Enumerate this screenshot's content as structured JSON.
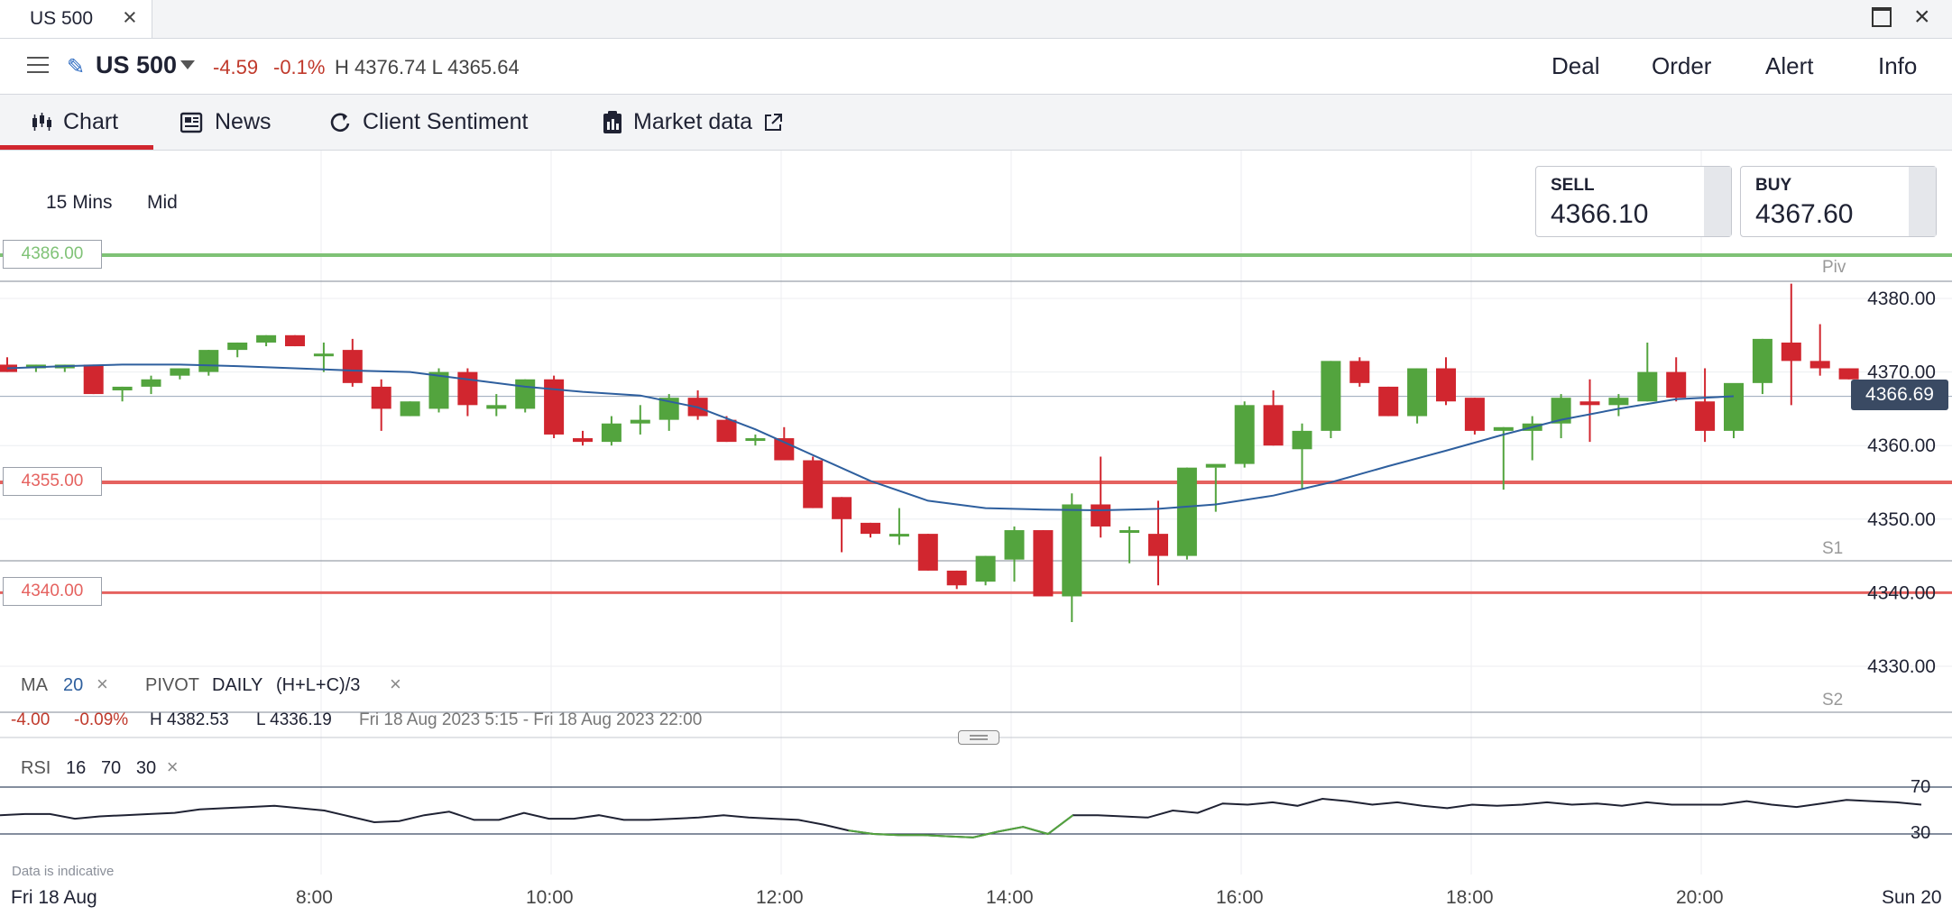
{
  "window": {
    "tab_title": "US 500"
  },
  "header": {
    "market": "US 500",
    "change": "-4.59",
    "change_pct": "-0.1%",
    "hilo": "H 4376.74  L 4365.64",
    "actions": [
      "Deal",
      "Order",
      "Alert",
      "Info"
    ]
  },
  "subtabs": [
    {
      "label": "Chart",
      "icon": "candlestick-icon",
      "active": true
    },
    {
      "label": "News",
      "icon": "newspaper-icon"
    },
    {
      "label": "Client Sentiment",
      "icon": "refresh-icon"
    },
    {
      "label": "Market data",
      "icon": "clipboard-icon",
      "external": true
    }
  ],
  "chart": {
    "timeframe": "15 Mins",
    "price_type": "Mid",
    "sell": {
      "label": "SELL",
      "value": "4366.10"
    },
    "buy": {
      "label": "BUY",
      "value": "4367.60"
    },
    "current_price": "4366.69",
    "level_labels": {
      "piv": "Piv",
      "s1": "S1",
      "s2": "S2",
      "pivot_box": "4386.00",
      "r_box": "4355.00",
      "s_box": "4340.00"
    },
    "indicators": {
      "ma_label": "MA",
      "ma_period": "20",
      "pivot_label": "PIVOT",
      "pivot_freq": "DAILY",
      "pivot_formula": "(H+L+C)/3"
    },
    "stats": {
      "change": "-4.00",
      "change_pct": "-0.09%",
      "high": "H 4382.53",
      "low": "L 4336.19",
      "range": "Fri 18 Aug 2023 5:15 - Fri 18 Aug 2023 22:00"
    },
    "rsi": {
      "label": "RSI",
      "period": "16",
      "upper": "70",
      "lower": "30"
    },
    "disclaimer": "Data is indicative",
    "date_start": "Fri 18 Aug",
    "date_end": "Sun 20",
    "colors": {
      "up": "#53a43e",
      "down": "#d1262f",
      "ma": "#2e5f9e",
      "pivot": "#7fc276",
      "support": "#e5625f"
    }
  },
  "chart_data": {
    "type": "candlestick",
    "x_ticks": [
      "8:00",
      "10:00",
      "12:00",
      "14:00",
      "16:00",
      "18:00",
      "20:00"
    ],
    "y_ticks": [
      "4380.00",
      "4370.00",
      "4360.00",
      "4350.00",
      "4340.00",
      "4330.00"
    ],
    "ylim": [
      4326,
      4386
    ],
    "levels": [
      {
        "name": "Pivot",
        "value": 4386.0
      },
      {
        "name": "R",
        "value": 4355.0
      },
      {
        "name": "S",
        "value": 4340.0
      }
    ],
    "candles": [
      [
        4371,
        4372,
        4370,
        4370
      ],
      [
        4370.5,
        4371,
        4370,
        4371
      ],
      [
        4370.5,
        4371,
        4370,
        4371
      ],
      [
        4371,
        4371,
        4367,
        4367
      ],
      [
        4367.5,
        4368,
        4366,
        4368
      ],
      [
        4368,
        4369.5,
        4367,
        4369
      ],
      [
        4369.5,
        4370.5,
        4369,
        4370.5
      ],
      [
        4370,
        4373,
        4369.5,
        4373
      ],
      [
        4373,
        4374,
        4372,
        4374
      ],
      [
        4374,
        4375,
        4373.5,
        4375
      ],
      [
        4375,
        4375,
        4373.5,
        4373.5
      ],
      [
        4372.5,
        4374,
        4370,
        4372.5
      ],
      [
        4373,
        4374.5,
        4368,
        4368.5
      ],
      [
        4368,
        4369,
        4362,
        4365
      ],
      [
        4364,
        4366,
        4364,
        4366
      ],
      [
        4365,
        4370.5,
        4364.5,
        4370
      ],
      [
        4370,
        4370.5,
        4364,
        4365.5
      ],
      [
        4365,
        4367,
        4364,
        4365.5
      ],
      [
        4365,
        4369,
        4364.5,
        4369
      ],
      [
        4369,
        4369.5,
        4361,
        4361.5
      ],
      [
        4361,
        4362,
        4360,
        4360.5
      ],
      [
        4360.5,
        4364,
        4360,
        4363
      ],
      [
        4363,
        4365.5,
        4361.5,
        4363.5
      ],
      [
        4363.5,
        4367,
        4362,
        4366.5
      ],
      [
        4366.5,
        4367.5,
        4363.5,
        4364
      ],
      [
        4363.5,
        4364,
        4360.5,
        4360.5
      ],
      [
        4361,
        4361.5,
        4360,
        4361
      ],
      [
        4361,
        4362.5,
        4358,
        4358
      ],
      [
        4358,
        4358.5,
        4351.5,
        4351.5
      ],
      [
        4353,
        4353,
        4345.5,
        4350
      ],
      [
        4349.5,
        4349.5,
        4347.5,
        4348
      ],
      [
        4348,
        4351.5,
        4346.5,
        4348
      ],
      [
        4348,
        4348,
        4343,
        4343
      ],
      [
        4343,
        4343,
        4340.5,
        4341
      ],
      [
        4341.5,
        4345,
        4341,
        4345
      ],
      [
        4344.5,
        4349,
        4341.5,
        4348.5
      ],
      [
        4348.5,
        4348.5,
        4339.5,
        4339.5
      ],
      [
        4339.5,
        4353.5,
        4336,
        4352
      ],
      [
        4352,
        4358.5,
        4347.5,
        4349
      ],
      [
        4348.5,
        4349,
        4344,
        4348.5
      ],
      [
        4348,
        4352.5,
        4341,
        4345
      ],
      [
        4345,
        4357,
        4344.5,
        4357
      ],
      [
        4357,
        4357,
        4351,
        4357.5
      ],
      [
        4357.5,
        4366,
        4357,
        4365.5
      ],
      [
        4365.5,
        4367.5,
        4360,
        4360
      ],
      [
        4359.5,
        4363,
        4354,
        4362
      ],
      [
        4362,
        4371.5,
        4361,
        4371.5
      ],
      [
        4371.5,
        4372,
        4368,
        4368.5
      ],
      [
        4368,
        4368,
        4364,
        4364
      ],
      [
        4364,
        4370.5,
        4363,
        4370.5
      ],
      [
        4370.5,
        4372,
        4365.5,
        4366
      ],
      [
        4366.5,
        4366.5,
        4361.5,
        4362
      ],
      [
        4362,
        4362.5,
        4354,
        4362.5
      ],
      [
        4362,
        4364,
        4358,
        4363
      ],
      [
        4363,
        4367,
        4361,
        4366.5
      ],
      [
        4366,
        4369,
        4360.5,
        4365.5
      ],
      [
        4365.5,
        4367,
        4364,
        4366.5
      ],
      [
        4366,
        4374,
        4366,
        4370
      ],
      [
        4370,
        4372,
        4366,
        4366.5
      ],
      [
        4366,
        4370.5,
        4360.5,
        4362
      ],
      [
        4362,
        4368,
        4361,
        4368.5
      ],
      [
        4368.5,
        4374.5,
        4367,
        4374.5
      ],
      [
        4374,
        4382,
        4365.5,
        4371.5
      ],
      [
        4371.5,
        4376.5,
        4369.5,
        4370.5
      ],
      [
        4370.5,
        4370.5,
        4369,
        4369
      ]
    ],
    "ma": [
      4370.5,
      4370.8,
      4371,
      4371,
      4370.8,
      4370.5,
      4370.2,
      4370,
      4369,
      4368,
      4367.3,
      4366.8,
      4365.2,
      4362.2,
      4358.7,
      4355.2,
      4352.5,
      4351.5,
      4351.3,
      4351.2,
      4351.4,
      4352,
      4353.2,
      4355,
      4357.2,
      4359.3,
      4361.5,
      4363.5,
      4365,
      4366.3,
      4366.7
    ],
    "ma_x": [
      0,
      2,
      4,
      6,
      8,
      10,
      12,
      14,
      16,
      18,
      20,
      22,
      24,
      26,
      28,
      30,
      32,
      34,
      36,
      38,
      40,
      42,
      44,
      46,
      48,
      50,
      52,
      54,
      56,
      58,
      60
    ],
    "rsi_values": [
      46,
      47,
      47,
      43,
      45,
      46,
      47,
      48,
      51,
      52,
      53,
      54,
      52,
      50,
      45,
      40,
      41,
      46,
      49,
      42,
      42,
      48,
      43,
      43,
      46,
      42,
      42,
      43,
      44,
      46,
      44,
      43,
      42,
      38,
      33,
      30,
      29,
      29,
      28,
      27,
      32,
      36,
      30,
      46,
      46,
      45,
      44,
      50,
      48,
      56,
      55,
      57,
      54,
      60,
      58,
      55,
      57,
      54,
      52,
      55,
      54,
      55,
      57,
      55,
      56,
      54,
      57,
      55,
      55,
      55,
      58,
      55,
      53,
      56,
      59,
      58,
      57,
      55
    ],
    "rsi_ylim": [
      20,
      80
    ],
    "rsi_levels": [
      70,
      30
    ]
  }
}
